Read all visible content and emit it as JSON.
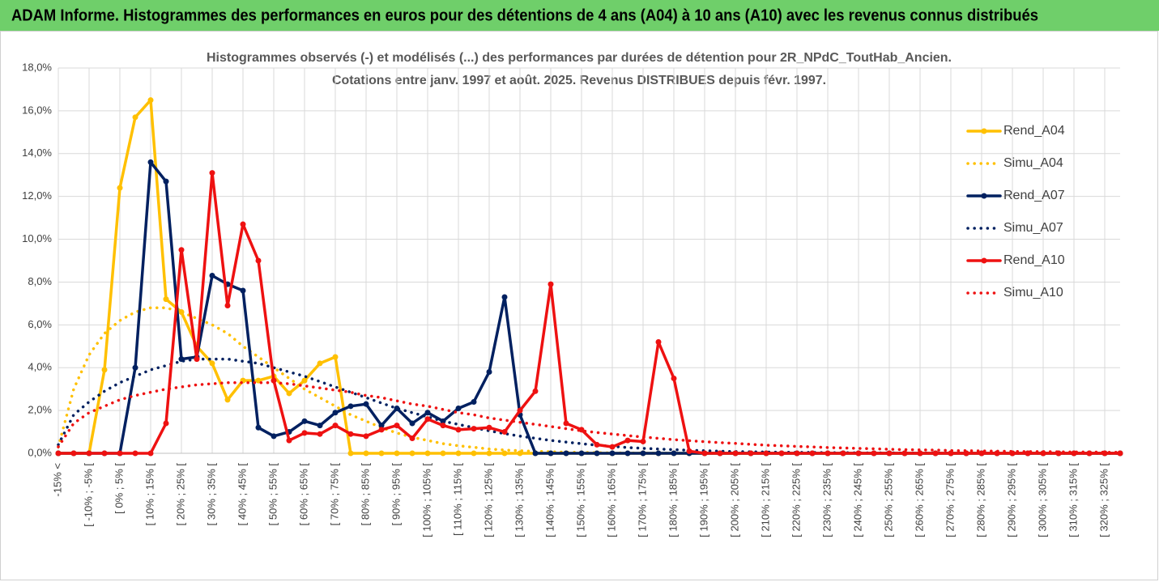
{
  "header": "ADAM Informe. Histogrammes des performances en euros pour des détentions de 4 ans (A04) à 10 ans (A10) avec les revenus connus distribués",
  "chart_data": {
    "type": "line",
    "title": [
      "Histogrammes observés (-) et modélisés (...) des performances par durées de détention pour 2R_NPdC_ToutHab_Ancien.",
      "Cotations entre janv. 1997 et août. 2025. Revenus DISTRIBUES depuis févr. 1997."
    ],
    "categories": [
      "-15% <",
      null,
      "[ -10% ; -5% [",
      null,
      "[ 0% ; 5% [",
      null,
      "[ 10% ; 15% [",
      null,
      "[ 20% ; 25% [",
      null,
      "[ 30% ; 35% [",
      null,
      "[ 40% ; 45% [",
      null,
      "[ 50% ; 55% [",
      null,
      "[ 60% ; 65% [",
      null,
      "[ 70% ; 75% [",
      null,
      "[ 80% ; 85% [",
      null,
      "[ 90% ; 95% [",
      null,
      "[ 100% ; 105% [",
      null,
      "[ 110% ; 115% [",
      null,
      "[ 120% ; 125% [",
      null,
      "[ 130% ; 135% [",
      null,
      "[ 140% ; 145% [",
      null,
      "[ 150% ; 155% [",
      null,
      "[ 160% ; 165% [",
      null,
      "[ 170% ; 175% [",
      null,
      "[ 180% ; 185% [",
      null,
      "[ 190% ; 195% [",
      null,
      "[ 200% ; 205% [",
      null,
      "[ 210% ; 215% [",
      null,
      "[ 220% ; 225% [",
      null,
      "[ 230% ; 235% [",
      null,
      "[ 240% ; 245% [",
      null,
      "[ 250% ; 255% [",
      null,
      "[ 260% ; 265% [",
      null,
      "[ 270% ; 275% [",
      null,
      "[ 280% ; 285% [",
      null,
      "[ 290% ; 295% [",
      null,
      "[ 300% ; 305% [",
      null,
      "[ 310% ; 315% [",
      null,
      "[ 320% ; 325% [",
      null
    ],
    "series": [
      {
        "name": "Rend_A04",
        "color": "#ffc000",
        "line_style": "solid",
        "markers": true,
        "values": [
          0,
          0,
          0,
          3.9,
          12.4,
          15.7,
          16.5,
          7.2,
          6.6,
          5.0,
          4.2,
          2.5,
          3.4,
          3.4,
          3.6,
          2.8,
          3.4,
          4.2,
          4.5,
          0,
          0,
          0,
          0,
          0,
          0,
          0,
          0,
          0,
          0,
          0,
          0,
          0,
          0,
          0,
          0,
          0,
          0,
          0,
          0,
          0,
          0,
          0,
          0,
          0,
          0,
          0,
          0,
          0,
          0,
          0,
          0,
          0,
          0,
          0,
          0,
          0,
          0,
          0,
          0,
          0,
          0,
          0,
          0,
          0,
          0,
          0,
          0,
          0,
          0,
          0
        ]
      },
      {
        "name": "Simu_A04",
        "color": "#ffc000",
        "line_style": "dotted",
        "markers": false,
        "values": [
          0.3,
          3.0,
          4.6,
          5.6,
          6.2,
          6.6,
          6.8,
          6.8,
          6.6,
          6.3,
          6.0,
          5.6,
          5.0,
          4.5,
          4.0,
          3.5,
          3.0,
          2.6,
          2.2,
          1.8,
          1.5,
          1.2,
          0.95,
          0.75,
          0.6,
          0.45,
          0.35,
          0.28,
          0.2,
          0.15,
          0.12,
          0.09,
          0.07,
          0.05,
          0.04,
          0.03,
          0.02,
          0.02,
          0.01,
          0.01,
          0,
          0,
          0,
          0,
          0,
          0,
          0,
          0,
          0,
          0,
          0,
          0,
          0,
          0,
          0,
          0,
          0,
          0,
          0,
          0,
          0,
          0,
          0,
          0,
          0,
          0,
          0,
          0,
          0,
          0
        ]
      },
      {
        "name": "Rend_A07",
        "color": "#002060",
        "line_style": "solid",
        "markers": true,
        "values": [
          0,
          0,
          0,
          0,
          0,
          4.0,
          13.6,
          12.7,
          4.4,
          4.5,
          8.3,
          7.9,
          7.6,
          1.2,
          0.8,
          1.0,
          1.5,
          1.3,
          1.9,
          2.2,
          2.3,
          1.3,
          2.1,
          1.4,
          1.9,
          1.5,
          2.1,
          2.4,
          3.8,
          7.3,
          1.8,
          0,
          0,
          0,
          0,
          0,
          0,
          0,
          0,
          0,
          0,
          0,
          0,
          0,
          0,
          0,
          0,
          0,
          0,
          0,
          0,
          0,
          0,
          0,
          0,
          0,
          0,
          0,
          0,
          0,
          0,
          0,
          0,
          0,
          0,
          0,
          0,
          0,
          0,
          0
        ]
      },
      {
        "name": "Simu_A07",
        "color": "#002060",
        "line_style": "dotted",
        "markers": false,
        "values": [
          0.4,
          1.8,
          2.4,
          2.9,
          3.3,
          3.6,
          3.9,
          4.1,
          4.3,
          4.4,
          4.4,
          4.4,
          4.3,
          4.2,
          4.0,
          3.8,
          3.6,
          3.35,
          3.1,
          2.85,
          2.6,
          2.35,
          2.1,
          1.9,
          1.7,
          1.5,
          1.35,
          1.2,
          1.05,
          0.92,
          0.8,
          0.7,
          0.6,
          0.52,
          0.45,
          0.38,
          0.32,
          0.27,
          0.23,
          0.2,
          0.17,
          0.14,
          0.12,
          0.1,
          0.08,
          0.07,
          0.06,
          0.05,
          0.04,
          0.04,
          0.03,
          0.03,
          0.02,
          0.02,
          0.02,
          0.01,
          0.01,
          0.01,
          0.01,
          0.01,
          0.01,
          0.01,
          0,
          0,
          0,
          0,
          0,
          0,
          0,
          0
        ]
      },
      {
        "name": "Rend_A10",
        "color": "#ee1111",
        "line_style": "solid",
        "markers": true,
        "values": [
          0,
          0,
          0,
          0,
          0,
          0,
          0,
          1.4,
          9.5,
          4.4,
          13.1,
          6.9,
          10.7,
          9.0,
          3.4,
          0.6,
          0.95,
          0.9,
          1.3,
          0.9,
          0.8,
          1.1,
          1.3,
          0.7,
          1.6,
          1.3,
          1.1,
          1.15,
          1.2,
          1.0,
          2.0,
          2.9,
          7.9,
          1.4,
          1.1,
          0.4,
          0.3,
          0.6,
          0.55,
          5.2,
          3.5,
          0.1,
          0,
          0,
          0,
          0,
          0,
          0,
          0,
          0,
          0,
          0,
          0,
          0,
          0,
          0,
          0,
          0,
          0,
          0,
          0,
          0,
          0,
          0,
          0,
          0,
          0,
          0,
          0,
          0
        ]
      },
      {
        "name": "Simu_A10",
        "color": "#ee1111",
        "line_style": "dotted",
        "markers": false,
        "values": [
          0.3,
          1.4,
          1.9,
          2.2,
          2.5,
          2.7,
          2.85,
          3.0,
          3.1,
          3.2,
          3.25,
          3.3,
          3.3,
          3.3,
          3.3,
          3.25,
          3.15,
          3.05,
          2.95,
          2.85,
          2.7,
          2.6,
          2.45,
          2.3,
          2.2,
          2.05,
          1.9,
          1.8,
          1.65,
          1.55,
          1.45,
          1.35,
          1.25,
          1.15,
          1.05,
          0.97,
          0.9,
          0.83,
          0.76,
          0.7,
          0.64,
          0.59,
          0.54,
          0.5,
          0.46,
          0.42,
          0.38,
          0.35,
          0.32,
          0.3,
          0.27,
          0.25,
          0.23,
          0.21,
          0.19,
          0.17,
          0.16,
          0.15,
          0.13,
          0.12,
          0.11,
          0.1,
          0.09,
          0.08,
          0.08,
          0.07,
          0.06,
          0.06,
          0.05,
          0.05
        ]
      }
    ],
    "ylim": [
      0,
      18
    ],
    "yticks": [
      {
        "value": 0,
        "label": "0,0%"
      },
      {
        "value": 2,
        "label": "2,0%"
      },
      {
        "value": 4,
        "label": "4,0%"
      },
      {
        "value": 6,
        "label": "6,0%"
      },
      {
        "value": 8,
        "label": "8,0%"
      },
      {
        "value": 10,
        "label": "10,0%"
      },
      {
        "value": 12,
        "label": "12,0%"
      },
      {
        "value": 14,
        "label": "14,0%"
      },
      {
        "value": 16,
        "label": "16,0%"
      },
      {
        "value": 18,
        "label": "18,0%"
      }
    ],
    "grid": true,
    "legend": "right"
  }
}
